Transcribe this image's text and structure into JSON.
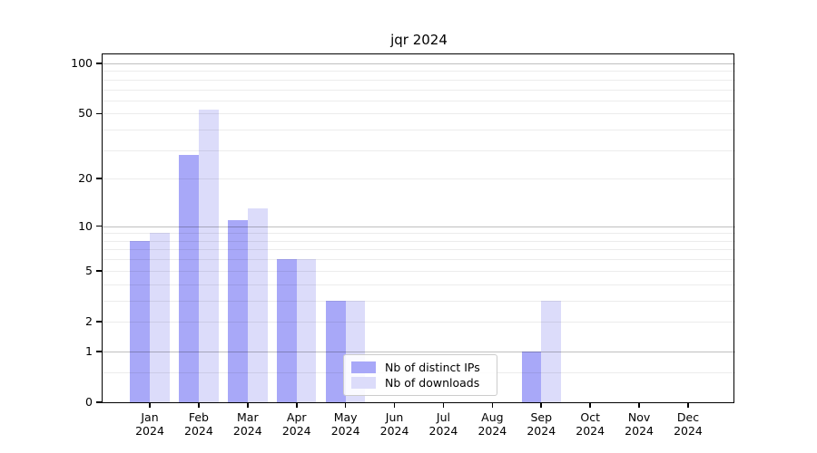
{
  "title": "jqr 2024",
  "legend": {
    "position": "lower center",
    "items": [
      {
        "label": "Nb of distinct IPs",
        "color": "#a8a8f8"
      },
      {
        "label": "Nb of downloads",
        "color": "#dcdcfa"
      }
    ]
  },
  "chart_data": {
    "type": "bar",
    "title": "jqr 2024",
    "xlabel": "",
    "ylabel": "",
    "year": "2024",
    "categories": [
      "Jan",
      "Feb",
      "Mar",
      "Apr",
      "May",
      "Jun",
      "Jul",
      "Aug",
      "Sep",
      "Oct",
      "Nov",
      "Dec"
    ],
    "series": [
      {
        "name": "Nb of distinct IPs",
        "color": "#a8a8f8",
        "values": [
          8,
          28,
          11,
          6,
          3,
          0,
          0,
          0,
          1,
          0,
          0,
          0
        ]
      },
      {
        "name": "Nb of downloads",
        "color": "#dcdcfa",
        "values": [
          9,
          53,
          13,
          6,
          3,
          0,
          0,
          0,
          3,
          0,
          0,
          0
        ]
      }
    ],
    "y_scale": "pseudo-log (log10(value+1))",
    "y_ticks": [
      0,
      1,
      2,
      5,
      10,
      20,
      50,
      100
    ],
    "y_major_gridlines": [
      1,
      10,
      100
    ],
    "y_minor_gridlines": [
      0.5,
      2,
      3,
      4,
      5,
      6,
      7,
      8,
      9,
      20,
      30,
      40,
      50,
      60,
      70,
      80,
      90
    ],
    "ylim": [
      0,
      100
    ],
    "grid": true,
    "colors": {
      "major_grid": "rgba(0,0,0,0.25)",
      "minor_grid": "rgba(0,0,0,0.075)",
      "spine": "#000000",
      "background": "#ffffff"
    }
  }
}
